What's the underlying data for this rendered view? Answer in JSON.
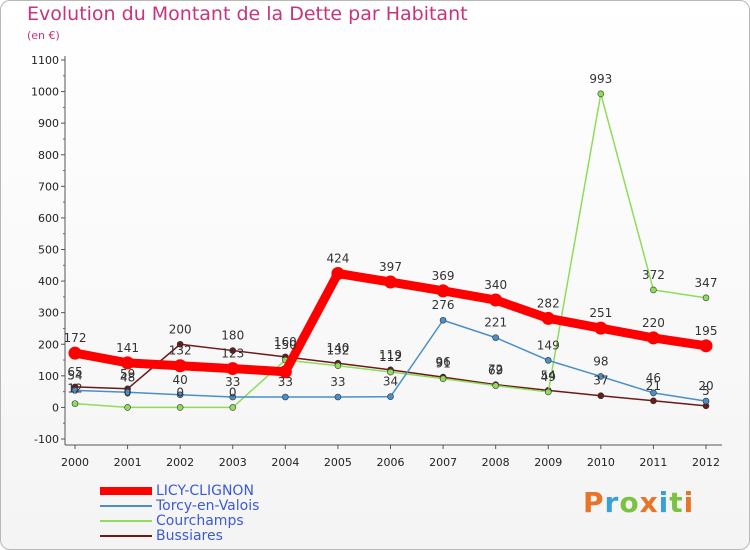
{
  "chart_data": {
    "type": "line",
    "title": "Evolution du Montant de la Dette par Habitant",
    "subtitle": "(en €)",
    "x": [
      "2000",
      "2001",
      "2002",
      "2003",
      "2004",
      "2005",
      "2006",
      "2007",
      "2008",
      "2009",
      "2010",
      "2011",
      "2012"
    ],
    "ylim": [
      -100,
      1100
    ],
    "yticks": [
      -100,
      0,
      100,
      200,
      300,
      400,
      500,
      600,
      700,
      800,
      900,
      1000,
      1100
    ],
    "grid": false,
    "legend": "bottom-left",
    "series": [
      {
        "name": "LICY-CLIGNON",
        "color": "#ff0000",
        "values": [
          172,
          141,
          132,
          123,
          113,
          424,
          397,
          369,
          340,
          282,
          251,
          220,
          195
        ]
      },
      {
        "name": "Torcy-en-Valois",
        "color": "#4a8fc9",
        "values": [
          54,
          48,
          40,
          33,
          33,
          33,
          34,
          276,
          221,
          149,
          98,
          46,
          20
        ]
      },
      {
        "name": "Courchamps",
        "color": "#8fdc5a",
        "values": [
          12,
          0,
          0,
          0,
          150,
          132,
          112,
          91,
          69,
          49,
          993,
          372,
          347
        ]
      },
      {
        "name": "Bussiares",
        "color": "#6b1a1a",
        "values": [
          65,
          59,
          200,
          180,
          160,
          140,
          119,
          96,
          72,
          54,
          37,
          21,
          5
        ]
      }
    ],
    "labels": [
      {
        "series": 0,
        "text": [
          "172",
          "141",
          "132",
          "123",
          "",
          "424",
          "397",
          "369",
          "340",
          "282",
          "251",
          "220",
          "195"
        ]
      },
      {
        "series": 1,
        "text": [
          "54",
          "48",
          "40",
          "33",
          "33",
          "33",
          "34",
          "276",
          "221",
          "149",
          "98",
          "46",
          "20"
        ]
      },
      {
        "series": 2,
        "text": [
          "12",
          "0",
          "0",
          "0",
          "150",
          "132",
          "112",
          "91",
          "69",
          "49",
          "993",
          "372",
          "347"
        ]
      },
      {
        "series": 3,
        "text": [
          "65",
          "59",
          "200",
          "180",
          "160",
          "140",
          "119",
          "96",
          "72",
          "54",
          "37",
          "21",
          "5"
        ]
      }
    ]
  },
  "brand": {
    "text": "Proxiti",
    "colors": [
      "#e8742a",
      "#3aa0d8",
      "#7cc242",
      "#e8742a",
      "#3aa0d8",
      "#7cc242",
      "#e8742a"
    ]
  }
}
